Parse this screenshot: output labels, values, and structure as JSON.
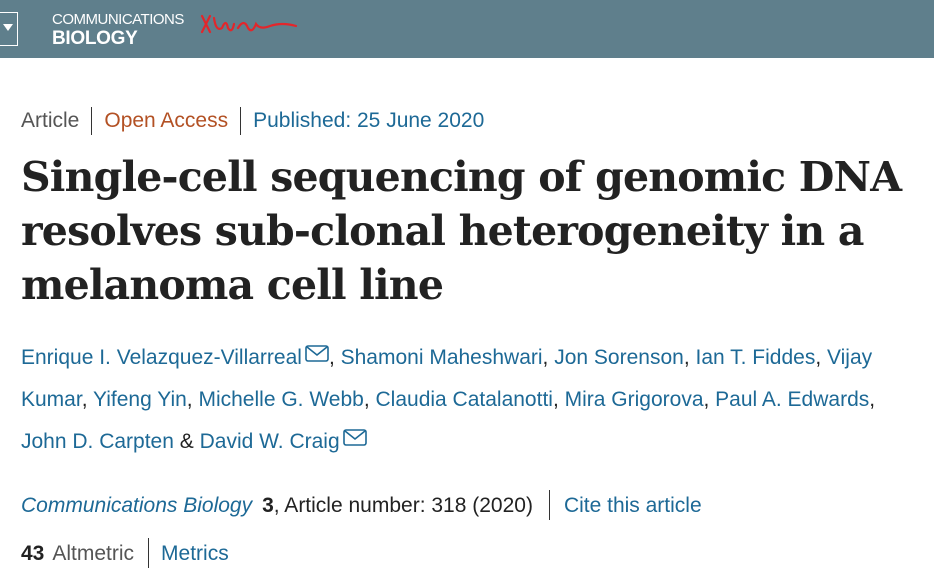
{
  "header": {
    "logo_line1": "COMMUNICATIONS",
    "logo_line2": "BIOLOGY",
    "background_color": "#5f7f8c",
    "squiggle_color": "#e3262b",
    "menu_icon": "chevron-down-icon"
  },
  "article_meta": {
    "type": "Article",
    "access": "Open Access",
    "published": "Published: 25 June 2020",
    "access_color": "#b35124",
    "link_color": "#1d6996"
  },
  "title": "Single-cell sequencing of genomic DNA resolves sub-clonal heterogeneity in a melanoma cell line",
  "authors": [
    {
      "name": "Enrique I. Velazquez-Villarreal",
      "email_icon": true,
      "sep": ", "
    },
    {
      "name": "Shamoni Maheshwari",
      "email_icon": false,
      "sep": ", "
    },
    {
      "name": "Jon Sorenson",
      "email_icon": false,
      "sep": ", "
    },
    {
      "name": "Ian T. Fiddes",
      "email_icon": false,
      "sep": ", "
    },
    {
      "name": "Vijay Kumar",
      "email_icon": false,
      "sep": ", "
    },
    {
      "name": "Yifeng Yin",
      "email_icon": false,
      "sep": ", "
    },
    {
      "name": "Michelle G. Webb",
      "email_icon": false,
      "sep": ", "
    },
    {
      "name": "Claudia Catalanotti",
      "email_icon": false,
      "sep": ", "
    },
    {
      "name": "Mira Grigorova",
      "email_icon": false,
      "sep": ", "
    },
    {
      "name": "Paul A. Edwards",
      "email_icon": false,
      "sep": ", "
    },
    {
      "name": "John D. Carpten",
      "email_icon": false,
      "sep": " & "
    },
    {
      "name": "David W. Craig",
      "email_icon": true,
      "sep": ""
    }
  ],
  "citation": {
    "journal": "Communications Biology",
    "volume": "3",
    "article_number": ", Article number: 318 (2020)",
    "cite_link": "Cite this article"
  },
  "metrics": {
    "count": "43",
    "label": "Altmetric",
    "link": "Metrics"
  }
}
